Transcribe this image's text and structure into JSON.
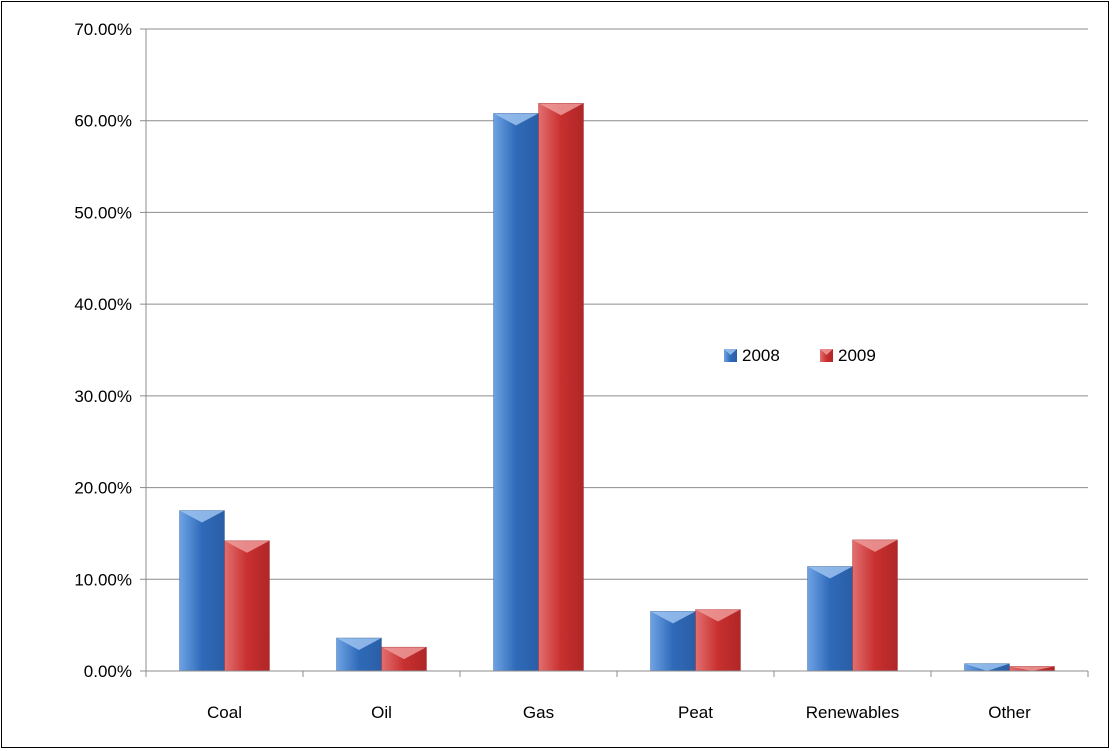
{
  "chart_data": {
    "type": "bar",
    "categories": [
      "Coal",
      "Oil",
      "Gas",
      "Peat",
      "Renewables",
      "Other"
    ],
    "series": [
      {
        "name": "2008",
        "values": [
          17.5,
          3.6,
          60.8,
          6.5,
          11.4,
          0.8
        ],
        "color": "#3d78c8"
      },
      {
        "name": "2009",
        "values": [
          14.2,
          2.6,
          61.9,
          6.7,
          14.3,
          0.5
        ],
        "color": "#d0383a"
      }
    ],
    "ylim": [
      0,
      70
    ],
    "yticks": [
      "0.00%",
      "10.00%",
      "20.00%",
      "30.00%",
      "40.00%",
      "50.00%",
      "60.00%",
      "70.00%"
    ],
    "grid": true,
    "legend_position": "center-right"
  }
}
